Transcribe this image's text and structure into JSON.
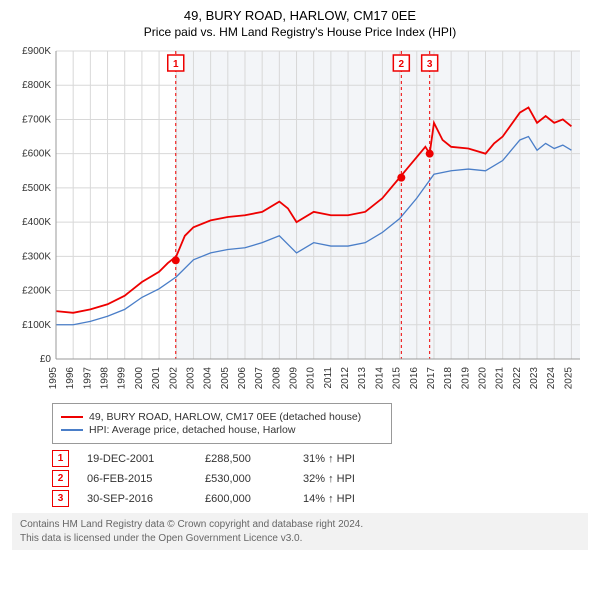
{
  "header": {
    "title": "49, BURY ROAD, HARLOW, CM17 0EE",
    "subtitle": "Price paid vs. HM Land Registry's House Price Index (HPI)"
  },
  "chart": {
    "type": "line",
    "background": "#ffffff",
    "shaded_bg": "#f3f5f8",
    "grid_color": "#d8d8d8",
    "axis_color": "#999999",
    "label_color": "#333333",
    "label_fontsize": 10,
    "xlim": [
      1995,
      2025.5
    ],
    "ylim": [
      0,
      900
    ],
    "ytick_step": 100,
    "ytick_prefix": "£",
    "ytick_suffix": "K",
    "xticks": [
      1995,
      1996,
      1997,
      1998,
      1999,
      2000,
      2001,
      2002,
      2003,
      2004,
      2005,
      2006,
      2007,
      2008,
      2009,
      2010,
      2011,
      2012,
      2013,
      2014,
      2015,
      2016,
      2017,
      2018,
      2019,
      2020,
      2021,
      2022,
      2023,
      2024,
      2025
    ],
    "series": [
      {
        "name": "49, BURY ROAD, HARLOW, CM17 0EE (detached house)",
        "color": "#ee0000",
        "width": 1.8,
        "points": [
          [
            1995,
            140
          ],
          [
            1996,
            135
          ],
          [
            1997,
            145
          ],
          [
            1998,
            160
          ],
          [
            1999,
            185
          ],
          [
            2000,
            225
          ],
          [
            2001,
            255
          ],
          [
            2001.5,
            280
          ],
          [
            2002,
            300
          ],
          [
            2002.5,
            360
          ],
          [
            2003,
            385
          ],
          [
            2004,
            405
          ],
          [
            2005,
            415
          ],
          [
            2006,
            420
          ],
          [
            2007,
            430
          ],
          [
            2008,
            460
          ],
          [
            2008.5,
            440
          ],
          [
            2009,
            400
          ],
          [
            2010,
            430
          ],
          [
            2011,
            420
          ],
          [
            2012,
            420
          ],
          [
            2013,
            430
          ],
          [
            2014,
            470
          ],
          [
            2015,
            530
          ],
          [
            2015.5,
            560
          ],
          [
            2016,
            590
          ],
          [
            2016.5,
            620
          ],
          [
            2016.75,
            600
          ],
          [
            2017,
            690
          ],
          [
            2017.5,
            640
          ],
          [
            2018,
            620
          ],
          [
            2019,
            615
          ],
          [
            2020,
            600
          ],
          [
            2020.5,
            630
          ],
          [
            2021,
            650
          ],
          [
            2022,
            720
          ],
          [
            2022.5,
            735
          ],
          [
            2023,
            690
          ],
          [
            2023.5,
            710
          ],
          [
            2024,
            690
          ],
          [
            2024.5,
            700
          ],
          [
            2025,
            680
          ]
        ]
      },
      {
        "name": "HPI: Average price, detached house, Harlow",
        "color": "#4a7ec8",
        "width": 1.3,
        "points": [
          [
            1995,
            100
          ],
          [
            1996,
            100
          ],
          [
            1997,
            110
          ],
          [
            1998,
            125
          ],
          [
            1999,
            145
          ],
          [
            2000,
            180
          ],
          [
            2001,
            205
          ],
          [
            2002,
            240
          ],
          [
            2003,
            290
          ],
          [
            2004,
            310
          ],
          [
            2005,
            320
          ],
          [
            2006,
            325
          ],
          [
            2007,
            340
          ],
          [
            2008,
            360
          ],
          [
            2009,
            310
          ],
          [
            2010,
            340
          ],
          [
            2011,
            330
          ],
          [
            2012,
            330
          ],
          [
            2013,
            340
          ],
          [
            2014,
            370
          ],
          [
            2015,
            410
          ],
          [
            2015.5,
            440
          ],
          [
            2016,
            470
          ],
          [
            2017,
            540
          ],
          [
            2018,
            550
          ],
          [
            2019,
            555
          ],
          [
            2020,
            550
          ],
          [
            2021,
            580
          ],
          [
            2022,
            640
          ],
          [
            2022.5,
            650
          ],
          [
            2023,
            610
          ],
          [
            2023.5,
            630
          ],
          [
            2024,
            615
          ],
          [
            2024.5,
            625
          ],
          [
            2025,
            610
          ]
        ]
      }
    ],
    "markers": [
      {
        "num": "1",
        "x": 2001.97,
        "y": 288.5,
        "color": "#ee0000"
      },
      {
        "num": "2",
        "x": 2015.1,
        "y": 530,
        "color": "#ee0000"
      },
      {
        "num": "3",
        "x": 2016.75,
        "y": 600,
        "color": "#ee0000"
      }
    ],
    "marker_line_color": "#ee0000",
    "marker_line_dash": "3,3"
  },
  "legend": {
    "items": [
      {
        "label": "49, BURY ROAD, HARLOW, CM17 0EE (detached house)",
        "color": "#ee0000"
      },
      {
        "label": "HPI: Average price, detached house, Harlow",
        "color": "#4a7ec8"
      }
    ]
  },
  "events": [
    {
      "num": "1",
      "date": "19-DEC-2001",
      "price": "£288,500",
      "delta": "31% ↑ HPI"
    },
    {
      "num": "2",
      "date": "06-FEB-2015",
      "price": "£530,000",
      "delta": "32% ↑ HPI"
    },
    {
      "num": "3",
      "date": "30-SEP-2016",
      "price": "£600,000",
      "delta": "14% ↑ HPI"
    }
  ],
  "footer": {
    "line1": "Contains HM Land Registry data © Crown copyright and database right 2024.",
    "line2": "This data is licensed under the Open Government Licence v3.0."
  }
}
